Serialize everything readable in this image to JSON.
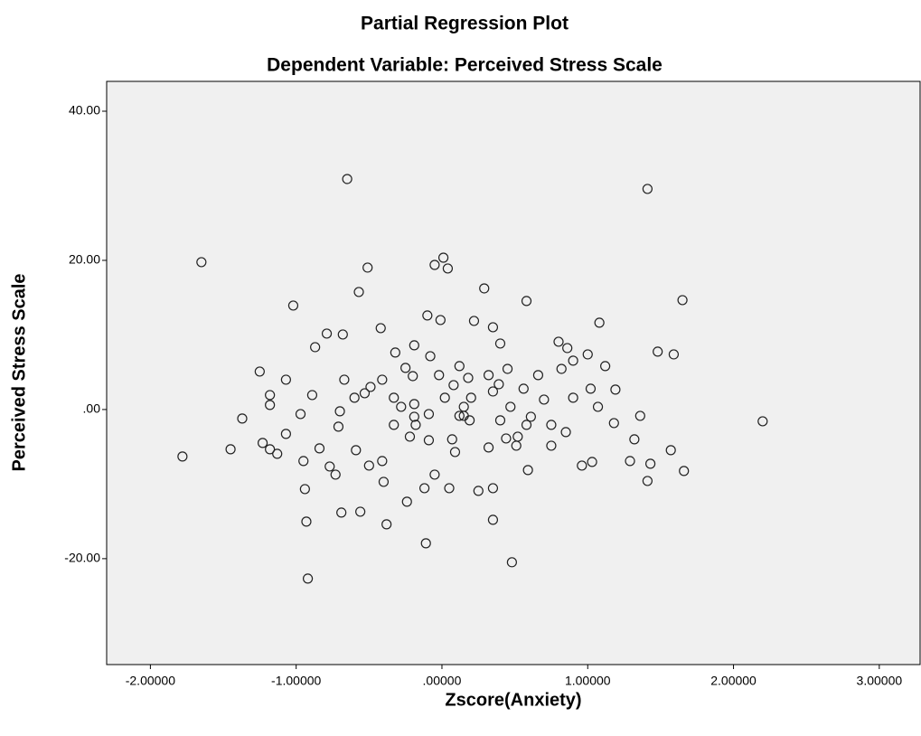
{
  "chart_data": {
    "type": "scatter",
    "title": "Partial Regression Plot",
    "subtitle": "Dependent Variable: Perceived Stress Scale",
    "xlabel": "Zscore(Anxiety)",
    "ylabel": "Perceived Stress Scale",
    "xlim": [
      -2.3,
      3.28
    ],
    "ylim": [
      -34.2,
      44
    ],
    "xticks": [
      {
        "value": -2,
        "label": "-2.00000"
      },
      {
        "value": -1,
        "label": "-1.00000"
      },
      {
        "value": 0,
        "label": ".00000"
      },
      {
        "value": 1,
        "label": "1.00000"
      },
      {
        "value": 2,
        "label": "2.00000"
      },
      {
        "value": 3,
        "label": "3.00000"
      }
    ],
    "yticks": [
      {
        "value": -20,
        "label": "-20.00"
      },
      {
        "value": 0,
        "label": ".00"
      },
      {
        "value": 20,
        "label": "20.00"
      },
      {
        "value": 40,
        "label": "40.00"
      }
    ],
    "grid": false,
    "color": "#222222",
    "background": "#f0f0f0",
    "x": [
      -1.78,
      -1.65,
      -0.65,
      1.41,
      0.01,
      -0.05,
      0.04,
      -0.51,
      -0.57,
      0.29,
      0.58,
      1.08,
      1.65,
      -1.02,
      2.2,
      -1.37,
      -1.45,
      -1.25,
      -1.18,
      -1.18,
      -0.93,
      -0.92,
      -0.94,
      -0.87,
      -0.79,
      -0.68,
      -0.42,
      -0.1,
      -0.01,
      0.22,
      0.35,
      0.4,
      0.32,
      0.45,
      0.8,
      0.86,
      1.0,
      0.82,
      0.9,
      1.32,
      1.43,
      1.57,
      1.41,
      1.48,
      1.59,
      0.51,
      0.48,
      -0.11,
      -0.38,
      -0.56,
      -0.77,
      -0.5,
      -0.18,
      0.15,
      -0.28,
      -0.53,
      -0.7,
      -0.97,
      -1.07,
      -1.07,
      -0.95,
      -0.84,
      -0.71,
      -0.6,
      -0.41,
      -0.25,
      -0.08,
      0.12,
      0.2,
      0.4,
      0.58,
      0.7,
      1.02,
      1.07,
      1.19,
      0.96,
      1.03,
      1.18,
      1.29,
      1.12,
      0.9,
      0.66,
      0.56,
      0.32,
      0.07,
      -0.05,
      -0.12,
      -0.4,
      -0.24,
      -0.41,
      -0.59,
      -0.73,
      -1.13,
      -1.23,
      -1.18,
      -0.89,
      -0.67,
      -0.49,
      -0.33,
      -0.19,
      0.02,
      0.15,
      0.35,
      0.52,
      0.75,
      0.85,
      0.25,
      0.35,
      0.44,
      0.08,
      -0.02,
      -0.19,
      -0.32,
      -0.2,
      0.09,
      -0.09,
      -0.22,
      -0.33,
      0.39,
      0.47,
      0.61,
      0.75,
      0.05,
      0.59,
      0.19,
      0.18,
      0.12,
      -0.09,
      -0.19,
      1.36,
      1.66,
      0.35,
      -0.69
    ],
    "values": [
      -6.3,
      19.76,
      30.91,
      29.58,
      20.36,
      19.39,
      18.91,
      19.03,
      15.76,
      16.24,
      14.55,
      11.64,
      14.67,
      13.94,
      -1.58,
      -1.21,
      -5.33,
      5.09,
      1.94,
      -5.33,
      -15.03,
      -22.67,
      -10.67,
      8.36,
      10.18,
      10.06,
      10.91,
      12.61,
      12.0,
      11.88,
      11.03,
      8.85,
      4.61,
      5.45,
      9.09,
      8.24,
      7.39,
      5.45,
      1.58,
      -4.0,
      -7.27,
      -5.45,
      -9.58,
      7.76,
      7.39,
      -4.85,
      -20.48,
      -17.94,
      -15.39,
      -13.7,
      -7.64,
      -7.52,
      -2.06,
      0.36,
      0.36,
      2.18,
      -0.24,
      -0.61,
      4.0,
      -3.27,
      -6.91,
      -5.21,
      -2.3,
      1.58,
      4.0,
      5.58,
      7.15,
      5.82,
      1.58,
      -1.45,
      -2.06,
      1.33,
      2.79,
      0.36,
      2.67,
      -7.52,
      -7.03,
      -1.82,
      -6.91,
      5.82,
      6.55,
      4.61,
      2.79,
      -5.09,
      -4.0,
      -8.73,
      -10.55,
      -9.7,
      -12.36,
      -6.91,
      -5.45,
      -8.73,
      -5.94,
      -4.48,
      0.61,
      1.94,
      4.0,
      3.03,
      1.58,
      -0.97,
      1.58,
      -0.85,
      2.42,
      -3.64,
      -2.06,
      -3.03,
      -10.91,
      -10.55,
      -3.88,
      3.27,
      4.61,
      8.61,
      7.64,
      4.48,
      -5.7,
      -4.12,
      -3.64,
      -2.06,
      3.39,
      0.36,
      -0.97,
      -4.85,
      -10.55,
      -8.12,
      -1.45,
      4.24,
      -0.85,
      -0.61,
      0.73,
      -0.85,
      -8.24,
      -14.79,
      -13.82
    ]
  }
}
